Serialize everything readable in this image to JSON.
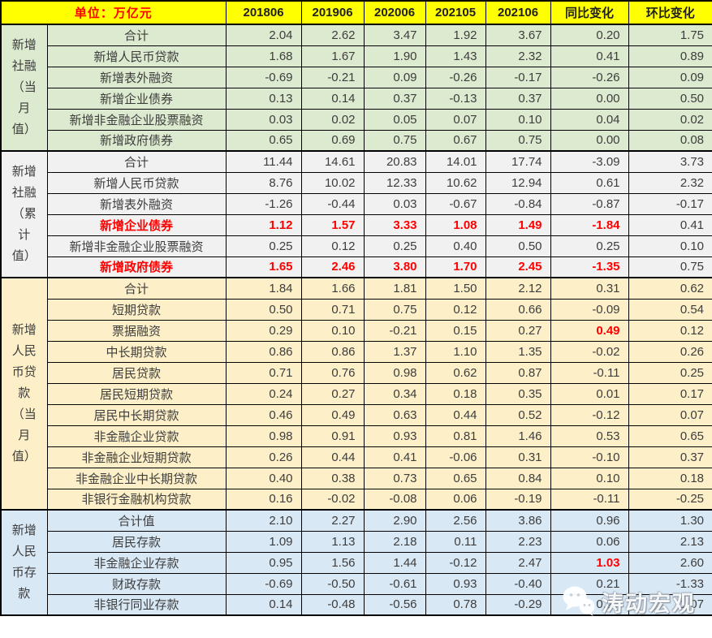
{
  "unit_label": "单位：万亿元",
  "watermark": {
    "text": "涛动宏观",
    "icon": "wechat-logo"
  },
  "colors": {
    "header_bg": "#ffff00",
    "header_unit_text": "#ff0000",
    "highlight_red": "#ff0000",
    "body_text": "#3d3d3d",
    "border": "#000000",
    "group1_bg": "#dcead0",
    "group2_bg": "#f1f1f1",
    "group3_bg": "#fdf0c8",
    "group4_bg": "#d9e8f5"
  },
  "chart_data": {
    "type": "table",
    "title": "单位：万亿元",
    "columns": [
      "201806",
      "201906",
      "202006",
      "202105",
      "202106",
      "同比变化",
      "环比变化"
    ],
    "groups": [
      {
        "name": "新增社融（当月值）",
        "label_lines": [
          "新增",
          "社融",
          "（当",
          "月",
          "值）"
        ],
        "rows": [
          {
            "label": "合计",
            "values": [
              "2.04",
              "2.62",
              "3.47",
              "1.92",
              "3.67",
              "0.20",
              "1.75"
            ]
          },
          {
            "label": "新增人民币贷款",
            "values": [
              "1.68",
              "1.67",
              "1.90",
              "1.43",
              "2.32",
              "0.41",
              "0.89"
            ]
          },
          {
            "label": "新增表外融资",
            "values": [
              "-0.69",
              "-0.21",
              "0.09",
              "-0.26",
              "-0.17",
              "-0.26",
              "0.09"
            ]
          },
          {
            "label": "新增企业债券",
            "values": [
              "0.13",
              "0.14",
              "0.37",
              "-0.13",
              "0.37",
              "0.00",
              "0.50"
            ]
          },
          {
            "label": "新增非金融企业股票融资",
            "values": [
              "0.03",
              "0.02",
              "0.05",
              "0.07",
              "0.10",
              "0.04",
              "0.02"
            ]
          },
          {
            "label": "新增政府债券",
            "values": [
              "0.65",
              "0.69",
              "0.75",
              "0.67",
              "0.75",
              "0.00",
              "0.08"
            ]
          }
        ]
      },
      {
        "name": "新增社融（累计值）",
        "label_lines": [
          "新增",
          "社融",
          "（累",
          "计",
          "值）"
        ],
        "rows": [
          {
            "label": "合计",
            "values": [
              "11.44",
              "14.61",
              "20.83",
              "14.01",
              "17.74",
              "-3.09",
              "3.73"
            ]
          },
          {
            "label": "新增人民币贷款",
            "values": [
              "8.76",
              "10.02",
              "12.33",
              "10.62",
              "12.94",
              "0.61",
              "2.32"
            ]
          },
          {
            "label": "新增表外融资",
            "values": [
              "-1.26",
              "-0.44",
              "0.03",
              "-0.67",
              "-0.84",
              "-0.87",
              "-0.17"
            ]
          },
          {
            "label": "新增企业债券",
            "red_label": true,
            "red_cols": [
              0,
              1,
              2,
              3,
              4,
              5
            ],
            "values": [
              "1.12",
              "1.57",
              "3.33",
              "1.08",
              "1.49",
              "-1.84",
              "0.41"
            ]
          },
          {
            "label": "新增非金融企业股票融资",
            "values": [
              "0.25",
              "0.12",
              "0.25",
              "0.40",
              "0.50",
              "0.25",
              "0.10"
            ]
          },
          {
            "label": "新增政府债券",
            "red_label": true,
            "red_cols": [
              0,
              1,
              2,
              3,
              4,
              5
            ],
            "values": [
              "1.65",
              "2.46",
              "3.80",
              "1.70",
              "2.45",
              "-1.35",
              "0.75"
            ]
          }
        ]
      },
      {
        "name": "新增人民币贷款（当月值）",
        "label_lines": [
          "新增",
          "人民",
          "币贷",
          "款",
          "（当",
          "月",
          "值）"
        ],
        "rows": [
          {
            "label": "合计",
            "values": [
              "1.84",
              "1.66",
              "1.81",
              "1.50",
              "2.12",
              "0.31",
              "0.62"
            ]
          },
          {
            "label": "短期贷款",
            "values": [
              "0.50",
              "0.71",
              "0.75",
              "0.12",
              "0.66",
              "-0.09",
              "0.54"
            ]
          },
          {
            "label": "票据融资",
            "red_cols": [
              5
            ],
            "values": [
              "0.29",
              "0.10",
              "-0.21",
              "0.15",
              "0.27",
              "0.49",
              "0.12"
            ]
          },
          {
            "label": "中长期贷款",
            "values": [
              "0.86",
              "0.86",
              "1.37",
              "1.10",
              "1.35",
              "-0.02",
              "0.26"
            ]
          },
          {
            "label": "居民贷款",
            "values": [
              "0.71",
              "0.76",
              "0.98",
              "0.62",
              "0.87",
              "-0.11",
              "0.25"
            ]
          },
          {
            "label": "居民短期贷款",
            "values": [
              "0.24",
              "0.27",
              "0.34",
              "0.18",
              "0.35",
              "0.01",
              "0.17"
            ]
          },
          {
            "label": "居民中长期贷款",
            "values": [
              "0.46",
              "0.49",
              "0.63",
              "0.44",
              "0.52",
              "-0.12",
              "0.07"
            ]
          },
          {
            "label": "非金融企业贷款",
            "values": [
              "0.98",
              "0.91",
              "0.93",
              "0.81",
              "1.46",
              "0.53",
              "0.65"
            ]
          },
          {
            "label": "非金融企业短期贷款",
            "values": [
              "0.26",
              "0.44",
              "0.41",
              "-0.06",
              "0.31",
              "-0.10",
              "0.37"
            ]
          },
          {
            "label": "非金融企业中长期贷款",
            "values": [
              "0.40",
              "0.38",
              "0.73",
              "0.65",
              "0.84",
              "0.10",
              "0.18"
            ]
          },
          {
            "label": "非银行金融机构贷款",
            "values": [
              "0.16",
              "-0.02",
              "-0.08",
              "0.06",
              "-0.19",
              "-0.11",
              "-0.25"
            ]
          }
        ]
      },
      {
        "name": "新增人民币存款",
        "label_lines": [
          "新增",
          "人民",
          "币存",
          "款"
        ],
        "rows": [
          {
            "label": "合计值",
            "values": [
              "2.10",
              "2.27",
              "2.90",
              "2.56",
              "3.86",
              "0.96",
              "1.30"
            ]
          },
          {
            "label": "居民存款",
            "values": [
              "1.09",
              "1.13",
              "2.18",
              "0.11",
              "2.23",
              "0.06",
              "2.13"
            ]
          },
          {
            "label": "非金融企业存款",
            "red_cols": [
              5
            ],
            "values": [
              "0.95",
              "1.56",
              "1.44",
              "-0.12",
              "2.47",
              "1.03",
              "2.60"
            ]
          },
          {
            "label": "财政存款",
            "values": [
              "-0.69",
              "-0.50",
              "-0.61",
              "0.93",
              "-0.40",
              "0.21",
              "-1.33"
            ]
          },
          {
            "label": "非银行同业存款",
            "values": [
              "0.14",
              "-0.48",
              "-0.56",
              "0.78",
              "-0.29",
              "0.27",
              "-1.07"
            ]
          }
        ]
      }
    ]
  }
}
